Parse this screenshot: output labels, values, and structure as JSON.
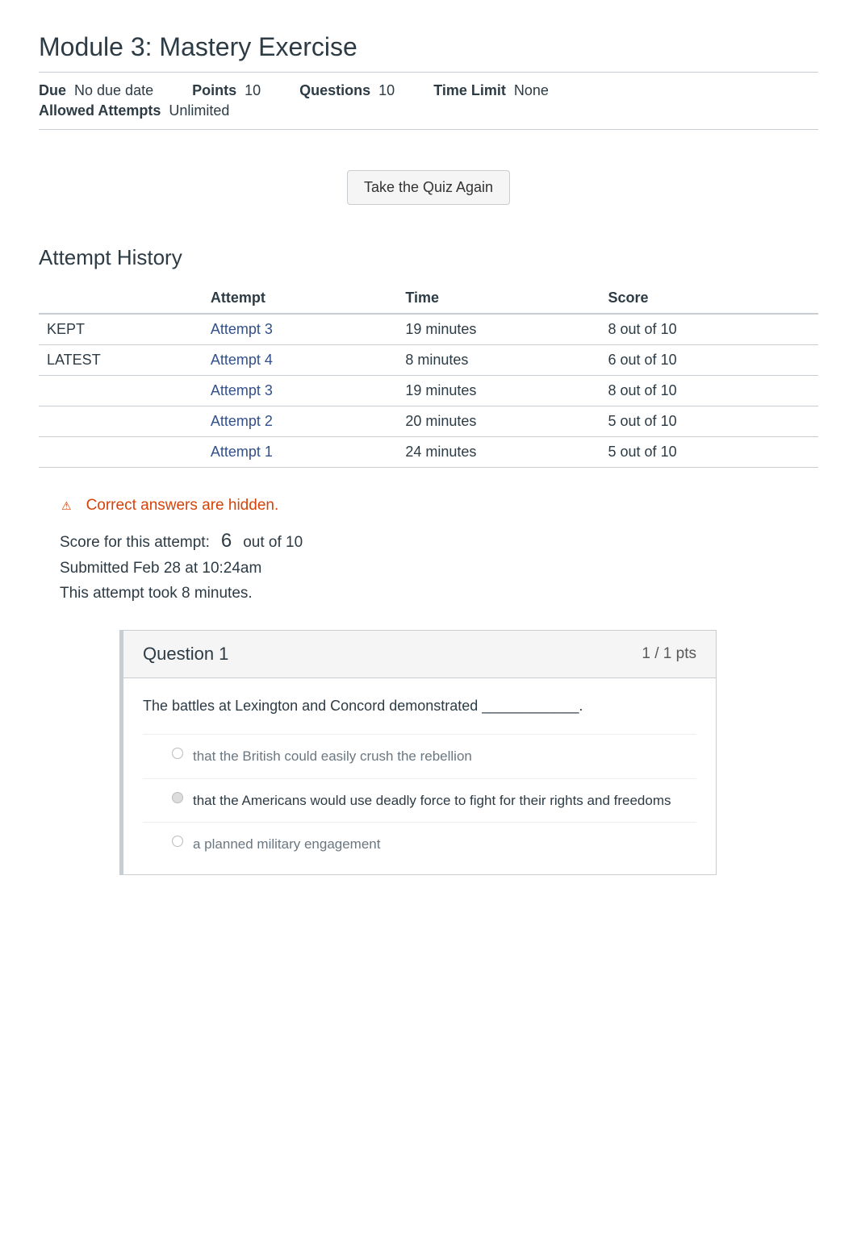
{
  "page_title": "Module 3: Mastery Exercise",
  "meta": {
    "due_label": "Due",
    "due_value": "No due date",
    "points_label": "Points",
    "points_value": "10",
    "questions_label": "Questions",
    "questions_value": "10",
    "time_limit_label": "Time Limit",
    "time_limit_value": "None",
    "allowed_attempts_label": "Allowed Attempts",
    "allowed_attempts_value": "Unlimited"
  },
  "button_label": "Take the Quiz Again",
  "history_heading": "Attempt History",
  "history_table": {
    "columns": [
      "",
      "Attempt",
      "Time",
      "Score"
    ],
    "rows": [
      {
        "tag": "KEPT",
        "attempt": "Attempt 3",
        "time": "19 minutes",
        "score": "8 out of 10"
      },
      {
        "tag": "LATEST",
        "attempt": "Attempt 4",
        "time": "8 minutes",
        "score": "6 out of 10"
      },
      {
        "tag": "",
        "attempt": "Attempt 3",
        "time": "19 minutes",
        "score": "8 out of 10"
      },
      {
        "tag": "",
        "attempt": "Attempt 2",
        "time": "20 minutes",
        "score": "5 out of 10"
      },
      {
        "tag": "",
        "attempt": "Attempt 1",
        "time": "24 minutes",
        "score": "5 out of 10"
      }
    ]
  },
  "hidden_notice": "Correct answers are hidden.",
  "score_info": {
    "label": "Score for this attempt:",
    "score": "6",
    "out_of": "out of 10",
    "submitted": "Submitted Feb 28 at 10:24am",
    "duration": "This attempt took 8 minutes."
  },
  "question": {
    "header": "Question 1",
    "pts": "1 / 1 pts",
    "text": "The battles at Lexington and Concord demonstrated ____________.",
    "answers": [
      {
        "text": "that the British could easily crush the rebellion",
        "selected": false
      },
      {
        "text": "that the Americans would use deadly force to fight for their rights and freedoms",
        "selected": true
      },
      {
        "text": "a planned military engagement",
        "selected": false
      }
    ]
  },
  "colors": {
    "link": "#32508c",
    "warning": "#d64309",
    "border": "#c7cdd1",
    "text": "#2d3b45"
  }
}
